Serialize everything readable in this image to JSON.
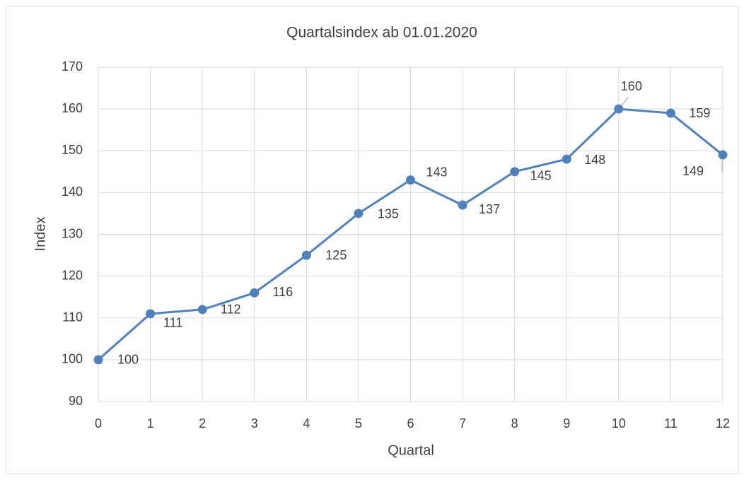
{
  "chart_data": {
    "type": "line",
    "title": "Quartalsindex ab 01.01.2020",
    "x_label": "Quartal",
    "y_label": "Index",
    "x": [
      0,
      1,
      2,
      3,
      4,
      5,
      6,
      7,
      8,
      9,
      10,
      11,
      12
    ],
    "series": [
      {
        "name": "Index",
        "color": "#4f81bd",
        "values": [
          100,
          111,
          112,
          116,
          125,
          135,
          143,
          137,
          145,
          148,
          160,
          159,
          149
        ]
      }
    ],
    "xlim": [
      0,
      12
    ],
    "xticks": [
      0,
      1,
      2,
      3,
      4,
      5,
      6,
      7,
      8,
      9,
      10,
      11,
      12
    ],
    "ylim": [
      90,
      170
    ],
    "yticks": [
      90,
      100,
      110,
      120,
      130,
      140,
      150,
      160,
      170
    ],
    "grid": true,
    "data_labels": true
  }
}
